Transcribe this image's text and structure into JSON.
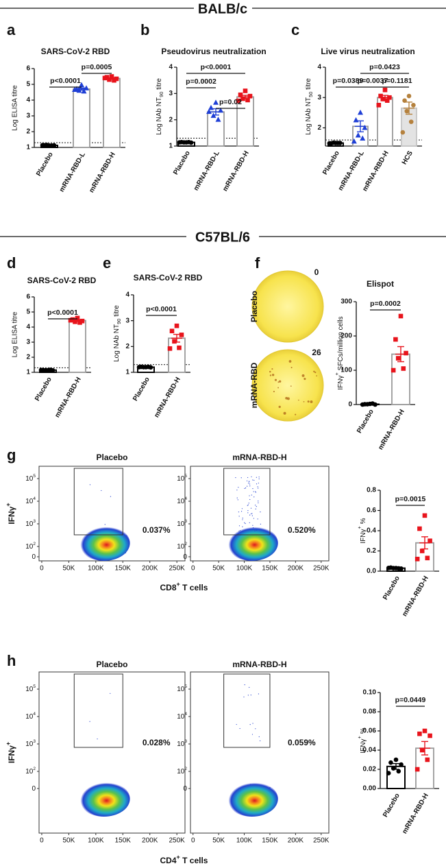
{
  "sections": [
    "BALB/c",
    "C57BL/6"
  ],
  "chart_data": [
    {
      "type": "bar",
      "panel": "a",
      "title": "SARS-CoV-2 RBD",
      "ylabel": "Log ELISA titre",
      "categories": [
        "Placebo",
        "mRNA-RBD-L",
        "mRNA-RBD-H"
      ],
      "values": [
        1.13,
        4.7,
        5.37
      ],
      "errors": [
        0.01,
        0.07,
        0.04
      ],
      "points": [
        [
          1.12,
          1.14,
          1.13,
          1.15,
          1.12,
          1.14
        ],
        [
          4.95,
          4.7,
          4.75,
          4.6,
          4.55,
          4.65
        ],
        [
          5.5,
          5.45,
          5.35,
          5.3,
          5.25,
          5.4
        ]
      ],
      "markers": [
        "circle",
        "triangle",
        "square"
      ],
      "colors": [
        "#000000",
        "#1f3fd6",
        "#e8141c"
      ],
      "bar_colors": [
        "#ffffff",
        "#ffffff",
        "#ffffff"
      ],
      "edge_colors": [
        "#000000",
        "#9a9a9a",
        "#9a9a9a"
      ],
      "cutoff": 1.3,
      "ylim": [
        1,
        6
      ],
      "yticks": [
        1,
        2,
        3,
        4,
        5,
        6
      ],
      "comparisons": [
        {
          "groups": [
            0,
            1
          ],
          "label": "p<0.0001"
        },
        {
          "groups": [
            1,
            2
          ],
          "label": "p=0.0005"
        }
      ]
    },
    {
      "type": "bar",
      "panel": "b",
      "title": "Pseudovirus neutralization",
      "ylabel": {
        "text": "Log NAb NT",
        "sub": "90",
        "tail": " titre"
      },
      "categories": [
        "Placebo",
        "mRNA-RBD-L",
        "mRNA-RBD-H"
      ],
      "values": [
        1.14,
        2.3,
        2.87
      ],
      "errors": [
        0.01,
        0.12,
        0.06
      ],
      "points": [
        [
          1.14,
          1.15,
          1.13,
          1.14,
          1.15,
          1.14
        ],
        [
          2.65,
          2.45,
          2.35,
          2.15,
          2.0,
          2.3
        ],
        [
          3.1,
          2.95,
          2.9,
          2.8,
          2.75,
          2.72
        ]
      ],
      "markers": [
        "circle",
        "triangle",
        "square"
      ],
      "colors": [
        "#000000",
        "#1f3fd6",
        "#e8141c"
      ],
      "bar_colors": [
        "#ffffff",
        "#ffffff",
        "#ffffff"
      ],
      "edge_colors": [
        "#000000",
        "#9a9a9a",
        "#9a9a9a"
      ],
      "cutoff": 1.3,
      "ylim": [
        1,
        4
      ],
      "yticks": [
        1,
        2,
        3,
        4
      ],
      "comparisons": [
        {
          "groups": [
            0,
            2
          ],
          "label": "p<0.0001"
        },
        {
          "groups": [
            0,
            1
          ],
          "label": "p=0.0002"
        },
        {
          "groups": [
            1,
            2
          ],
          "label": "p=0.02"
        }
      ]
    },
    {
      "type": "bar",
      "panel": "c",
      "title": "Live virus neutralization",
      "ylabel": {
        "text": "Log NAb NT",
        "sub": "50",
        "tail": " titre"
      },
      "categories": [
        "Placebo",
        "mRNA-RBD-L",
        "mRNA-RBD-H",
        "HCS"
      ],
      "values": [
        1.5,
        2.05,
        3.0,
        2.65
      ],
      "errors": [
        0.005,
        0.18,
        0.07,
        0.2
      ],
      "points": [
        [
          1.5,
          1.49,
          1.5,
          1.51,
          1.5,
          1.49
        ],
        [
          2.5,
          2.25,
          2.0,
          1.75,
          1.65,
          1.55
        ],
        [
          3.25,
          3.05,
          3.0,
          2.95,
          2.9,
          2.75
        ],
        [
          3.05,
          2.9,
          2.75,
          2.55,
          2.2,
          1.85
        ]
      ],
      "markers": [
        "circle",
        "triangle",
        "square",
        "circle"
      ],
      "colors": [
        "#000000",
        "#1f3fd6",
        "#e8141c",
        "#b5813d"
      ],
      "bar_colors": [
        "#ffffff",
        "#ffffff",
        "#ffffff",
        "#e3e3e3"
      ],
      "edge_colors": [
        "#000000",
        "#9a9a9a",
        "#9a9a9a",
        "#c4c4c4"
      ],
      "cutoff": 1.6,
      "ylim": [
        1.4,
        4
      ],
      "yticks": [
        2,
        3,
        4
      ],
      "comparisons": [
        {
          "groups": [
            0,
            1
          ],
          "label": "p=0.0389"
        },
        {
          "groups": [
            1,
            2
          ],
          "label": "p=0.0037"
        },
        {
          "groups": [
            2,
            3
          ],
          "label": "p=0.1181"
        },
        {
          "groups": [
            1,
            3
          ],
          "label": "p=0.0423"
        }
      ]
    },
    {
      "type": "bar",
      "panel": "d",
      "title": "SARS-CoV-2 RBD",
      "ylabel": "Log ELISA titre",
      "categories": [
        "Placebo",
        "mRNA-RBD-H"
      ],
      "values": [
        1.15,
        4.43
      ],
      "errors": [
        0.02,
        0.05
      ],
      "points": [
        [
          1.14,
          1.15,
          1.13,
          1.14,
          1.16,
          1.15
        ],
        [
          4.6,
          4.5,
          4.4,
          4.35,
          4.3,
          4.45
        ]
      ],
      "markers": [
        "circle",
        "square"
      ],
      "colors": [
        "#000000",
        "#e8141c"
      ],
      "bar_colors": [
        "#ffffff",
        "#ffffff"
      ],
      "edge_colors": [
        "#000000",
        "#9a9a9a"
      ],
      "cutoff": 1.3,
      "ylim": [
        1,
        6
      ],
      "yticks": [
        1,
        2,
        3,
        4,
        5,
        6
      ],
      "comparisons": [
        {
          "groups": [
            0,
            1
          ],
          "label": "p<0.0001"
        }
      ]
    },
    {
      "type": "bar",
      "panel": "e",
      "title": "SARS-CoV-2 RBD",
      "ylabel": {
        "text": "Log NAb NT",
        "sub": "90",
        "tail": " titre"
      },
      "categories": [
        "Placebo",
        "mRNA-RBD-H"
      ],
      "values": [
        1.2,
        2.32
      ],
      "errors": [
        0.01,
        0.15
      ],
      "points": [
        [
          1.2,
          1.21,
          1.19,
          1.2,
          1.21,
          1.2
        ],
        [
          2.8,
          2.6,
          2.45,
          2.2,
          1.95,
          1.92
        ]
      ],
      "markers": [
        "circle",
        "square"
      ],
      "colors": [
        "#000000",
        "#e8141c"
      ],
      "bar_colors": [
        "#ffffff",
        "#ffffff"
      ],
      "edge_colors": [
        "#000000",
        "#9a9a9a"
      ],
      "cutoff": 1.3,
      "ylim": [
        1,
        4
      ],
      "yticks": [
        1,
        2,
        3,
        4
      ],
      "comparisons": [
        {
          "groups": [
            0,
            1
          ],
          "label": "p<0.0001"
        }
      ]
    },
    {
      "type": "wells",
      "panel": "f",
      "labels": [
        "Placebo",
        "mRNA-RBD"
      ],
      "counts": [
        0,
        26
      ]
    },
    {
      "type": "bar",
      "title": "Elispot",
      "ylabel": {
        "text": "IFNγ",
        "sup": "+",
        "tail": " SFCs/million cells"
      },
      "categories": [
        "Placebo",
        "mRNA-RBD-H"
      ],
      "values": [
        1,
        147
      ],
      "errors": [
        0.5,
        22
      ],
      "points": [
        [
          2,
          1,
          0,
          1,
          3,
          0
        ],
        [
          258,
          190,
          150,
          135,
          105,
          100
        ]
      ],
      "markers": [
        "circle",
        "square"
      ],
      "colors": [
        "#000000",
        "#e8141c"
      ],
      "bar_colors": [
        "#ffffff",
        "#ffffff"
      ],
      "edge_colors": [
        "#000000",
        "#9a9a9a"
      ],
      "ylim": [
        0,
        300
      ],
      "yticks": [
        0,
        100,
        200,
        300
      ],
      "comparisons": [
        {
          "groups": [
            0,
            1
          ],
          "label": "p=0.0002"
        }
      ]
    },
    {
      "type": "flow",
      "panel": "g",
      "titles": [
        "Placebo",
        "mRNA-RBD-H"
      ],
      "gate_labels": [
        "0.037%",
        "0.520%"
      ],
      "ylabel": {
        "text": "IFNγ",
        "sup": "+"
      },
      "xlabel": {
        "text": "CD8",
        "sup": "+",
        "tail": " T cells"
      },
      "xlim": [
        -5000,
        265000
      ],
      "xticks": [
        0,
        {
          "value": 50000,
          "label": "50K"
        },
        {
          "value": 100000,
          "label": "100K"
        },
        {
          "value": 150000,
          "label": "150K"
        },
        {
          "value": 200000,
          "label": "200K"
        },
        {
          "value": 250000,
          "label": "250K"
        }
      ],
      "yticks": [
        0,
        {
          "value": 100,
          "label": "10",
          "exp": "2"
        },
        {
          "value": 1000,
          "label": "10",
          "exp": "3"
        },
        {
          "value": 10000,
          "label": "10",
          "exp": "4"
        },
        {
          "value": 100000,
          "label": "10",
          "exp": "5"
        }
      ]
    },
    {
      "type": "bar",
      "ylabel": {
        "text": "IFNγ",
        "sup": "+",
        "tail": " %"
      },
      "categories": [
        "Placebo",
        "mRNA-RBD-H"
      ],
      "values": [
        0.03,
        0.28
      ],
      "errors": [
        0.005,
        0.06
      ],
      "points": [
        [
          0.03,
          0.035,
          0.025,
          0.03,
          0.028,
          0.032
        ],
        [
          0.55,
          0.42,
          0.3,
          0.2,
          0.13,
          0.12
        ]
      ],
      "markers": [
        "circle",
        "square"
      ],
      "colors": [
        "#000000",
        "#e8141c"
      ],
      "bar_colors": [
        "#ffffff",
        "#ffffff"
      ],
      "edge_colors": [
        "#000000",
        "#9a9a9a"
      ],
      "ylim": [
        0,
        0.8
      ],
      "yticks": [
        {
          "value": 0,
          "label": "0.0"
        },
        0.2,
        0.4,
        0.6,
        0.8
      ],
      "comparisons": [
        {
          "groups": [
            0,
            1
          ],
          "label": "p=0.0015"
        }
      ]
    },
    {
      "type": "flow",
      "panel": "h",
      "titles": [
        "Placebo",
        "mRNA-RBD-H"
      ],
      "gate_labels": [
        "0.028%",
        "0.059%"
      ],
      "ylabel": {
        "text": "IFNγ",
        "sup": "+"
      },
      "xlabel": {
        "text": "CD4",
        "sup": "+",
        "tail": " T cells"
      },
      "xlim": [
        -5000,
        265000
      ],
      "xticks": [
        0,
        {
          "value": 50000,
          "label": "50K"
        },
        {
          "value": 100000,
          "label": "100K"
        },
        {
          "value": 150000,
          "label": "150K"
        },
        {
          "value": 200000,
          "label": "200K"
        },
        {
          "value": 250000,
          "label": "250K"
        }
      ],
      "yticks": [
        0,
        {
          "value": 100,
          "label": "10",
          "exp": "2"
        },
        {
          "value": 1000,
          "label": "10",
          "exp": "3"
        },
        {
          "value": 10000,
          "label": "10",
          "exp": "4"
        },
        {
          "value": 100000,
          "label": "10",
          "exp": "5"
        }
      ]
    },
    {
      "type": "bar",
      "ylabel": {
        "text": "IFNγ",
        "sup": "+",
        "tail": " %"
      },
      "categories": [
        "Placebo",
        "mRNA-RBD-H"
      ],
      "values": [
        0.023,
        0.042
      ],
      "errors": [
        0.003,
        0.007
      ],
      "points": [
        [
          0.03,
          0.027,
          0.025,
          0.021,
          0.018,
          0.016
        ],
        [
          0.06,
          0.057,
          0.055,
          0.04,
          0.03,
          0.02
        ]
      ],
      "markers": [
        "circle",
        "square"
      ],
      "colors": [
        "#000000",
        "#e8141c"
      ],
      "bar_colors": [
        "#ffffff",
        "#ffffff"
      ],
      "edge_colors": [
        "#000000",
        "#9a9a9a"
      ],
      "ylim": [
        0,
        0.1
      ],
      "yticks": [
        {
          "value": 0,
          "label": "0.00"
        },
        0.02,
        0.04,
        0.06,
        0.08,
        {
          "value": 0.1,
          "label": "0.10"
        }
      ],
      "comparisons": [
        {
          "groups": [
            0,
            1
          ],
          "label": "p=0.0449"
        }
      ]
    }
  ]
}
